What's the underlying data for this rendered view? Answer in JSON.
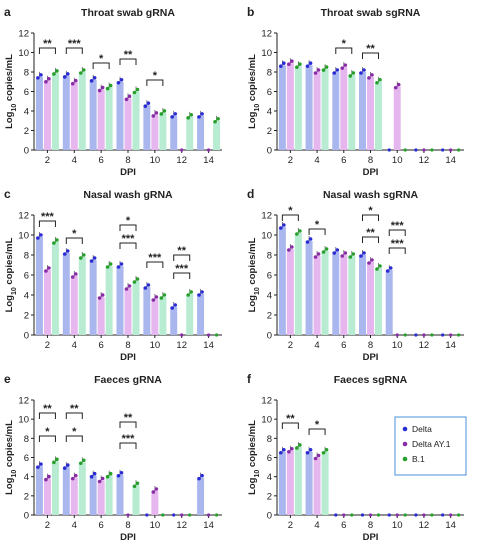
{
  "colors": {
    "delta": "#2b2bd6",
    "ay1": "#8a2ca8",
    "b1": "#27a02b",
    "delta_bar": "#aab7ee",
    "ay1_bar": "#e6b7ee",
    "b1_bar": "#b7ecd2",
    "legend_border": "#4a90d9"
  },
  "legend": {
    "items": [
      "Delta",
      "Delta AY.1",
      "B.1"
    ],
    "placement": "right of panel f"
  },
  "chart_data": [
    {
      "type": "bar",
      "panel_letter": "a",
      "title": "Throat swab gRNA",
      "xlabel": "DPI",
      "ylabel": "Log10 copies/mL",
      "categories": [
        "2",
        "4",
        "6",
        "8",
        "10",
        "12",
        "14"
      ],
      "yticks": [
        "0",
        "2",
        "4",
        "6",
        "8",
        "10",
        "12"
      ],
      "ylim": [
        0,
        12
      ],
      "series": [
        {
          "name": "Delta",
          "values": [
            7.5,
            7.6,
            7.2,
            7.0,
            4.6,
            3.5,
            3.5
          ]
        },
        {
          "name": "Delta AY.1",
          "values": [
            7.1,
            6.9,
            6.2,
            5.3,
            3.6,
            0,
            0
          ]
        },
        {
          "name": "B.1",
          "values": [
            7.9,
            8.0,
            6.4,
            6.0,
            3.8,
            3.4,
            3.0
          ]
        }
      ],
      "significance": [
        {
          "day": "2",
          "label": "**"
        },
        {
          "day": "4",
          "label": "***"
        },
        {
          "day": "6",
          "label": "*"
        },
        {
          "day": "8",
          "label": "**"
        },
        {
          "day": "10",
          "label": "*"
        }
      ]
    },
    {
      "type": "bar",
      "panel_letter": "b",
      "title": "Throat swab sgRNA",
      "xlabel": "DPI",
      "ylabel": "Log10 copies/mL",
      "categories": [
        "2",
        "4",
        "6",
        "8",
        "10",
        "12",
        "14"
      ],
      "yticks": [
        "0",
        "2",
        "4",
        "6",
        "8",
        "10",
        "12"
      ],
      "ylim": [
        0,
        12
      ],
      "series": [
        {
          "name": "Delta",
          "values": [
            8.7,
            8.7,
            8.0,
            8.0,
            0,
            0,
            0
          ]
        },
        {
          "name": "Delta AY.1",
          "values": [
            8.9,
            8.0,
            8.5,
            7.5,
            6.5,
            0,
            0
          ]
        },
        {
          "name": "B.1",
          "values": [
            8.6,
            8.3,
            7.7,
            7.0,
            0,
            0,
            0
          ]
        }
      ],
      "significance": [
        {
          "day": "6",
          "label": "*"
        },
        {
          "day": "8",
          "label": "**"
        }
      ]
    },
    {
      "type": "bar",
      "panel_letter": "c",
      "title": "Nasal wash gRNA",
      "xlabel": "DPI",
      "ylabel": "Log10 copies/mL",
      "categories": [
        "2",
        "4",
        "6",
        "8",
        "10",
        "12",
        "14"
      ],
      "yticks": [
        "0",
        "2",
        "4",
        "6",
        "8",
        "10",
        "12"
      ],
      "ylim": [
        0,
        12
      ],
      "series": [
        {
          "name": "Delta",
          "values": [
            9.8,
            8.2,
            7.5,
            6.9,
            4.8,
            2.8,
            4.1
          ]
        },
        {
          "name": "Delta AY.1",
          "values": [
            6.5,
            5.9,
            3.8,
            4.7,
            3.6,
            0,
            0
          ]
        },
        {
          "name": "B.1",
          "values": [
            9.3,
            7.8,
            6.9,
            5.4,
            3.8,
            4.1,
            0
          ]
        }
      ],
      "significance": [
        {
          "day": "2",
          "label": "***"
        },
        {
          "day": "4",
          "label": "*"
        },
        {
          "day": "8",
          "label": "*"
        },
        {
          "day": "8",
          "label": "***"
        },
        {
          "day": "10",
          "label": "***"
        },
        {
          "day": "12",
          "label": "**"
        },
        {
          "day": "12",
          "label": "***"
        }
      ]
    },
    {
      "type": "bar",
      "panel_letter": "d",
      "title": "Nasal wash sgRNA",
      "xlabel": "DPI",
      "ylabel": "Log10 copies/mL",
      "categories": [
        "2",
        "4",
        "6",
        "8",
        "10",
        "12",
        "14"
      ],
      "yticks": [
        "0",
        "2",
        "4",
        "6",
        "8",
        "10",
        "12"
      ],
      "ylim": [
        0,
        12
      ],
      "series": [
        {
          "name": "Delta",
          "values": [
            10.8,
            9.4,
            8.3,
            8.0,
            6.5,
            0,
            0
          ]
        },
        {
          "name": "Delta AY.1",
          "values": [
            8.6,
            7.9,
            8.0,
            7.3,
            0,
            0,
            0
          ]
        },
        {
          "name": "B.1",
          "values": [
            10.2,
            8.4,
            7.9,
            6.7,
            0,
            0,
            0
          ]
        }
      ],
      "significance": [
        {
          "day": "2",
          "label": "*"
        },
        {
          "day": "4",
          "label": "*"
        },
        {
          "day": "8",
          "label": "*"
        },
        {
          "day": "8",
          "label": "**"
        },
        {
          "day": "10",
          "label": "***"
        },
        {
          "day": "10",
          "label": "***"
        }
      ]
    },
    {
      "type": "bar",
      "panel_letter": "e",
      "title": "Faeces gRNA",
      "xlabel": "DPI",
      "ylabel": "Log10 copies/mL",
      "categories": [
        "2",
        "4",
        "6",
        "8",
        "10",
        "12",
        "14"
      ],
      "yticks": [
        "0",
        "2",
        "4",
        "6",
        "8",
        "10",
        "12"
      ],
      "ylim": [
        0,
        12
      ],
      "series": [
        {
          "name": "Delta",
          "values": [
            5.1,
            5.0,
            4.1,
            4.2,
            0,
            0,
            3.9
          ]
        },
        {
          "name": "Delta AY.1",
          "values": [
            3.8,
            3.9,
            3.6,
            0,
            2.5,
            0,
            0
          ]
        },
        {
          "name": "B.1",
          "values": [
            5.6,
            5.5,
            4.1,
            3.1,
            0,
            0,
            0
          ]
        }
      ],
      "significance": [
        {
          "day": "2",
          "label": "*"
        },
        {
          "day": "2",
          "label": "**"
        },
        {
          "day": "4",
          "label": "*"
        },
        {
          "day": "4",
          "label": "**"
        },
        {
          "day": "8",
          "label": "***"
        },
        {
          "day": "8",
          "label": "**"
        }
      ]
    },
    {
      "type": "bar",
      "panel_letter": "f",
      "title": "Faeces sgRNA",
      "xlabel": "DPI",
      "ylabel": "Log10 copies/mL",
      "categories": [
        "2",
        "4",
        "6",
        "8",
        "10",
        "12",
        "14"
      ],
      "yticks": [
        "0",
        "2",
        "4",
        "6",
        "8",
        "10",
        "12"
      ],
      "ylim": [
        0,
        12
      ],
      "series": [
        {
          "name": "Delta",
          "values": [
            6.6,
            6.6,
            0,
            0,
            0,
            0,
            0
          ]
        },
        {
          "name": "Delta AY.1",
          "values": [
            6.7,
            6.0,
            0,
            0,
            0,
            0,
            0
          ]
        },
        {
          "name": "B.1",
          "values": [
            7.1,
            6.6,
            0,
            0,
            0,
            0,
            0
          ]
        }
      ],
      "significance": [
        {
          "day": "2",
          "label": "**"
        },
        {
          "day": "4",
          "label": "*"
        }
      ]
    }
  ]
}
